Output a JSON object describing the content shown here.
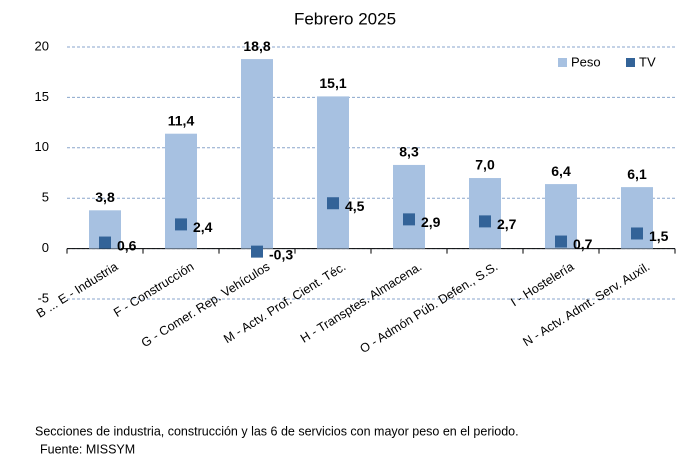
{
  "chart_data": {
    "type": "bar",
    "title": "Febrero 2025",
    "categories": [
      "B ... E - Industria",
      "F - Construcción",
      "G - Comer. Rep. Vehículos",
      "M - Actv. Prof. Cient. Téc.",
      "H - Transptes. Almacena.",
      "O - Admón Púb. Defen., S.S.",
      "I - Hostelería",
      "N - Actv. Admt. Serv. Auxil."
    ],
    "series": [
      {
        "name": "Peso",
        "color": "#a7c1e1",
        "values": [
          3.8,
          11.4,
          18.8,
          15.1,
          8.3,
          7.0,
          6.4,
          6.1
        ],
        "value_labels": [
          "3,8",
          "11,4",
          "18,8",
          "15,1",
          "8,3",
          "7,0",
          "6,4",
          "6,1"
        ]
      },
      {
        "name": "TV",
        "color": "#336398",
        "values": [
          0.6,
          2.4,
          -0.3,
          4.5,
          2.9,
          2.7,
          0.7,
          1.5
        ],
        "value_labels": [
          "0,6",
          "2,4",
          "-0,3",
          "4,5",
          "2,9",
          "2,7",
          "0,7",
          "1,5"
        ]
      }
    ],
    "ylim": [
      -5,
      20
    ],
    "yticks": [
      -5,
      0,
      5,
      10,
      15,
      20
    ],
    "grid": true,
    "legend": "top-right",
    "notes": [
      "Secciones de industria, construcción y las 6 de servicios con mayor peso en el periodo.",
      "Fuente: MISSYM"
    ]
  }
}
